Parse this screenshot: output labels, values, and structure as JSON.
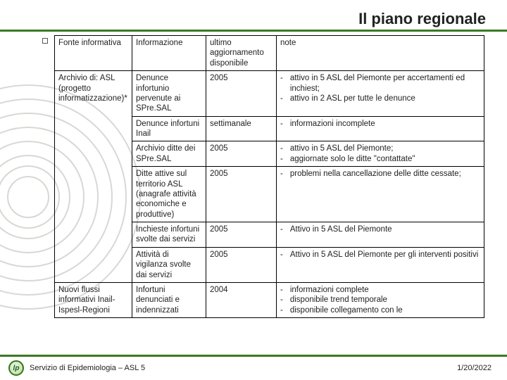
{
  "title": "Il piano regionale",
  "footer": {
    "service": "Servizio di Epidemiologia – ASL 5",
    "date": "1/20/2022",
    "logo_text": "lp"
  },
  "colors": {
    "accent_line": "#3a7a1f",
    "ring": "#6b7a64",
    "text": "#222222",
    "border": "#000000"
  },
  "table": {
    "columns": [
      "Fonte informativa",
      "Informazione",
      "ultimo aggiornamento disponibile",
      "note"
    ],
    "groups": [
      {
        "source": "Archivio di: ASL (progetto informatizzazione)*",
        "rows": [
          {
            "info": "Denunce infortunio pervenute ai SPre.SAL",
            "update": "2005",
            "notes": [
              "attivo in 5 ASL del Piemonte per accertamenti ed inchiest;",
              "attivo in 2 ASL per tutte le denunce"
            ]
          },
          {
            "info": "Denunce infortuni Inail",
            "update": "settimanale",
            "notes": [
              "informazioni incomplete"
            ]
          },
          {
            "info": "Archivio ditte dei SPre.SAL",
            "update": "2005",
            "notes": [
              "attivo in 5 ASL del Piemonte;",
              "aggiornate solo le ditte \"contattate\""
            ]
          },
          {
            "info": "Ditte attive sul territorio ASL (anagrafe attività economiche e produttive)",
            "update": "2005",
            "notes": [
              "problemi nella cancellazione delle ditte cessate;"
            ]
          },
          {
            "info": "Inchieste infortuni svolte dai servizi",
            "update": "2005",
            "notes": [
              "Attivo in 5 ASL del Piemonte"
            ]
          },
          {
            "info": "Attività di vigilanza svolte dai servizi",
            "update": "2005",
            "notes": [
              "Attivo in 5 ASL del Piemonte per gli interventi positivi"
            ]
          }
        ]
      },
      {
        "source": "Nuovi flussi informativi Inail-Ispesl-Regioni",
        "rows": [
          {
            "info": "Infortuni denunciati e indennizzati",
            "update": "2004",
            "notes": [
              "informazioni complete",
              "disponibile trend temporale",
              "disponibile collegamento con le"
            ]
          }
        ]
      }
    ]
  }
}
